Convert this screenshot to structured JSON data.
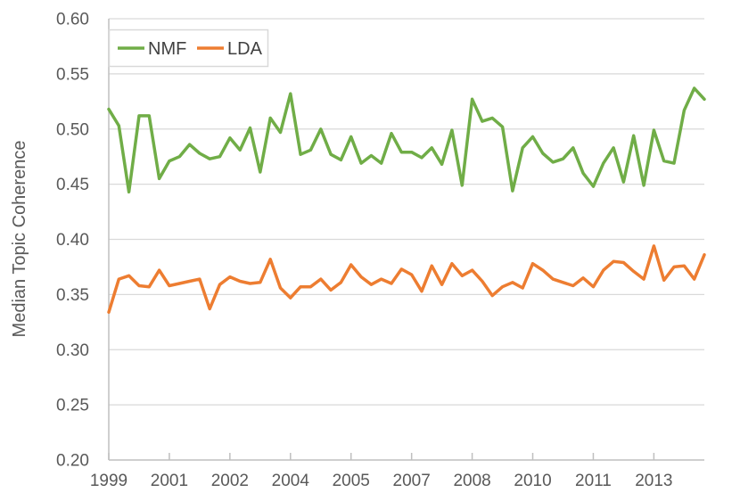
{
  "figure": {
    "background": "#ffffff",
    "axis_text_color": "#595959",
    "gridline_color": "#d9d9d9",
    "axis_line_color": "#bfbfbf"
  },
  "chart_data": {
    "type": "line",
    "title": "",
    "xlabel": "",
    "ylabel": "Median Topic Coherence",
    "ylim": [
      0.2,
      0.6
    ],
    "y_tick_step": 0.05,
    "y_tick_labels": [
      "0.20",
      "0.25",
      "0.30",
      "0.35",
      "0.40",
      "0.45",
      "0.50",
      "0.55",
      "0.60"
    ],
    "x_tick_labels": [
      "1999",
      "2001",
      "2002",
      "2004",
      "2005",
      "2007",
      "2008",
      "2010",
      "2011",
      "2013"
    ],
    "x_tick_every_points": 6,
    "x_description": "quarterly values from 1999 through 2013 (60 points); year tick marks every 6 quarters",
    "n_points": 60,
    "grid": "horizontal",
    "legend_position": "top-left-inside",
    "series": [
      {
        "name": "NMF",
        "color": "#70AD47",
        "values": [
          0.518,
          0.503,
          0.443,
          0.512,
          0.512,
          0.455,
          0.471,
          0.475,
          0.486,
          0.478,
          0.473,
          0.475,
          0.492,
          0.481,
          0.501,
          0.461,
          0.51,
          0.497,
          0.532,
          0.477,
          0.481,
          0.5,
          0.477,
          0.472,
          0.493,
          0.469,
          0.476,
          0.469,
          0.496,
          0.479,
          0.479,
          0.474,
          0.483,
          0.468,
          0.499,
          0.449,
          0.527,
          0.507,
          0.51,
          0.502,
          0.444,
          0.483,
          0.493,
          0.478,
          0.47,
          0.473,
          0.483,
          0.46,
          0.448,
          0.469,
          0.483,
          0.452,
          0.494,
          0.449,
          0.499,
          0.471,
          0.469,
          0.517,
          0.537,
          0.527
        ]
      },
      {
        "name": "LDA",
        "color": "#ED7D31",
        "values": [
          0.334,
          0.364,
          0.367,
          0.358,
          0.357,
          0.372,
          0.358,
          0.36,
          0.362,
          0.364,
          0.337,
          0.359,
          0.366,
          0.362,
          0.36,
          0.361,
          0.382,
          0.356,
          0.347,
          0.357,
          0.357,
          0.364,
          0.354,
          0.361,
          0.377,
          0.366,
          0.359,
          0.364,
          0.36,
          0.373,
          0.368,
          0.353,
          0.376,
          0.359,
          0.378,
          0.367,
          0.372,
          0.362,
          0.349,
          0.357,
          0.361,
          0.356,
          0.378,
          0.372,
          0.364,
          0.361,
          0.358,
          0.365,
          0.357,
          0.372,
          0.38,
          0.379,
          0.371,
          0.364,
          0.394,
          0.363,
          0.375,
          0.376,
          0.364,
          0.386
        ]
      }
    ]
  }
}
